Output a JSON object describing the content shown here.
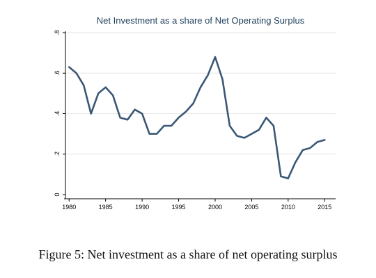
{
  "caption": "Figure 5: Net investment as a share of net operating surplus",
  "chart_data": {
    "type": "line",
    "title": "Net Investment as a share of Net Operating Surplus",
    "xlabel": "",
    "ylabel": "",
    "xlim": [
      1979.5,
      2016.5
    ],
    "ylim": [
      0,
      0.8
    ],
    "xticks": [
      1980,
      1985,
      1990,
      1995,
      2000,
      2005,
      2010,
      2015
    ],
    "yticks": [
      0,
      0.2,
      0.4,
      0.6,
      0.8
    ],
    "ytick_labels": [
      "0",
      ".2",
      ".4",
      ".6",
      ".8"
    ],
    "grid": true,
    "legend": "none",
    "series_color": "#3a5876",
    "series": [
      {
        "x": [
          1980,
          1981,
          1982,
          1983,
          1984,
          1985,
          1986,
          1987,
          1988,
          1989,
          1990,
          1991,
          1992,
          1993,
          1994,
          1995,
          1996,
          1997,
          1998,
          1999,
          2000,
          2001,
          2002,
          2003,
          2004,
          2005,
          2006,
          2007,
          2008,
          2009,
          2010,
          2011,
          2012,
          2013,
          2014,
          2015
        ],
        "values": [
          0.63,
          0.6,
          0.54,
          0.4,
          0.5,
          0.53,
          0.49,
          0.38,
          0.37,
          0.42,
          0.4,
          0.3,
          0.3,
          0.34,
          0.34,
          0.38,
          0.41,
          0.45,
          0.53,
          0.59,
          0.68,
          0.57,
          0.34,
          0.29,
          0.28,
          0.3,
          0.32,
          0.38,
          0.34,
          0.09,
          0.08,
          0.16,
          0.22,
          0.23,
          0.26,
          0.27
        ]
      }
    ]
  }
}
